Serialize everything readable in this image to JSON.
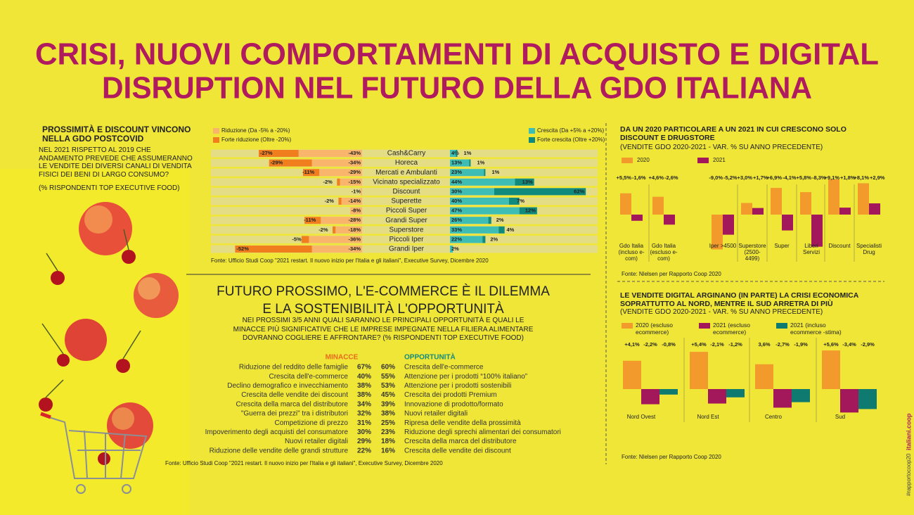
{
  "title": [
    "CRISI, NUOVI COMPORTAMENTI DI ACQUISTO E DIGITAL",
    "DISRUPTION NEL FUTURO DELLA GDO  ITALIANA"
  ],
  "intro": {
    "heading": "PROSSIMITÀ E DISCOUNT VINCONO NELLA GDO POSTCOVID",
    "text": "NEL 2021 RISPETTO AL 2019 CHE ANDAMENTO PREVEDE CHE ASSUMERANNO LE VENDITE DEI DIVERSI CANALI DI VENDITA FISICI DEI BENI DI LARGO CONSUMO?",
    "note": "(% RISPONDENTI TOP EXECUTIVE FOOD)"
  },
  "chart_data": [
    {
      "type": "bar",
      "categories": [
        "Cash&Carry",
        "Horeca",
        "Mercati e Ambulanti",
        "Vicinato specializzato",
        "Discount",
        "Superette",
        "Piccoli Super",
        "Grandi Super",
        "Superstore",
        "Piccoli Iper",
        "Grandi Iper"
      ],
      "series": [
        {
          "name": "Riduzione (Da -5% a -20%)",
          "color": "#f9b56c",
          "values": [
            -43,
            -34,
            -29,
            -15,
            -1,
            -14,
            -8,
            -28,
            -18,
            -36,
            -34
          ],
          "value_labels": [
            "-43%",
            "-34%",
            "-29%",
            "-15%",
            "-1%",
            "-14%",
            "-8%",
            "-28%",
            "-18%",
            "-36%",
            "-34%"
          ]
        },
        {
          "name": "Forte riduzione (Oltre -20%)",
          "color": "#f07d1e",
          "values": [
            -27,
            -29,
            -11,
            -2,
            null,
            -2,
            null,
            -11,
            -2,
            -5,
            -52
          ],
          "value_labels": [
            "-27%",
            "-29%",
            "-11%",
            "-2%",
            null,
            "-2%",
            null,
            "-11%",
            "-2%",
            "-5%",
            "-52%"
          ]
        },
        {
          "name": "Crescita (Da +5% a +20%)",
          "color": "#3dbdb4",
          "values": [
            4,
            13,
            23,
            44,
            30,
            40,
            47,
            26,
            33,
            22,
            2
          ],
          "value_labels": [
            "4%",
            "13%",
            "23%",
            "44%",
            "30%",
            "40%",
            "47%",
            "26%",
            "33%",
            "22%",
            "2%"
          ]
        },
        {
          "name": "Forte crescita (Oltre +20%)",
          "color": "#108a7c",
          "values": [
            1,
            1,
            1,
            13,
            62,
            7,
            12,
            2,
            4,
            2,
            null
          ],
          "value_labels": [
            "1%",
            "1%",
            "1%",
            "13%",
            "62%",
            "7%",
            "12%",
            "2%",
            "4%",
            "2%",
            null
          ]
        }
      ],
      "source": "Fonte: Ufficio Studi Coop \"2021 restart. Il nuovo inizio per l'Italia e gli italiani\", Executive Survey, Dicembre 2020"
    },
    {
      "type": "bar",
      "title": "DA UN 2020 PARTICOLARE A UN 2021 IN CUI CRESCONO SOLO DISCOUNT E DRUGSTORE",
      "subtitle": "(VENDITE GDO 2020-2021 - VAR. % SU ANNO PRECEDENTE)",
      "categories": [
        "Gdo Italia (incluso e-com)",
        "Gdo Italia (escluso e-com)",
        "Iper >4500",
        "Superstore (2500-4499)",
        "Super",
        "Liberi Servizi",
        "Discount",
        "Specialisti Drug"
      ],
      "series": [
        {
          "name": "2020",
          "color": "#f39a2c",
          "values": [
            5.5,
            4.6,
            -9.0,
            3.0,
            6.9,
            5.8,
            9.1,
            8.1
          ],
          "value_labels": [
            "+5,5%",
            "+4,6%",
            "-9,0%",
            "+3,0%",
            "+6,9%",
            "+5,8%",
            "+9,1%",
            "+8,1%"
          ]
        },
        {
          "name": "2021",
          "color": "#a3185b",
          "values": [
            -1.6,
            -2.6,
            -5.2,
            1.7,
            -4.1,
            -8.3,
            1.8,
            2.9
          ],
          "value_labels": [
            "-1,6%",
            "-2,6%",
            "-5,2%",
            "+1,7%",
            "-4,1%",
            "-8,3%",
            "+1,8%",
            "+2,9%"
          ]
        }
      ],
      "source": "Fonte: Nlelsen per Rapporto Coop 2020"
    },
    {
      "type": "bar",
      "title": "LE VENDITE DIGITAL ARGINANO (IN PARTE) LA CRISI ECONOMICA SOPRATTUTTO AL NORD, MENTRE IL SUD ARRETRA DI PIÙ",
      "subtitle": "(VENDITE GDO 2020-2021 - VAR. % SU ANNO PRECEDENTE)",
      "categories": [
        "Nord Ovest",
        "Nord Est",
        "Centro",
        "Sud"
      ],
      "series": [
        {
          "name": "2020 (escluso ecommerce)",
          "color": "#f39a2c",
          "values": [
            4.1,
            5.4,
            3.6,
            5.6
          ],
          "value_labels": [
            "+4,1%",
            "+5,4%",
            "3,6%",
            "+5,6%"
          ]
        },
        {
          "name": "2021 (escluso ecommerce)",
          "color": "#a3185b",
          "values": [
            -2.2,
            -2.1,
            -2.7,
            -3.4
          ],
          "value_labels": [
            "-2,2%",
            "-2,1%",
            "-2,7%",
            "-3,4%"
          ]
        },
        {
          "name": "2021 (incluso ecommerce -stima)",
          "color": "#0f7b70",
          "values": [
            -0.8,
            -1.2,
            -1.9,
            -2.9
          ],
          "value_labels": [
            "-0,8%",
            "-1,2%",
            "-1,9%",
            "-2,9%"
          ]
        }
      ],
      "source": "Fonte: Nlelsen per Rapporto Coop 2020"
    }
  ],
  "future": {
    "title": [
      "FUTURO PROSSIMO, L'E-COMMERCE È IL DILEMMA",
      "E LA SOSTENIBILITÀ  L'OPPORTUNITÀ"
    ],
    "question": "NEI PROSSIMI 3/5 ANNI QUALI SARANNO LE PRINCIPALI OPPORTUNITÀ E QUALI LE MINACCE PIÙ SIGNIFICATIVE CHE LE IMPRESE IMPEGNATE NELLA FILIERA ALIMENTARE DOVRANNO COGLIERE E AFFRONTARE? (% RISPONDENTI TOP EXECUTIVE FOOD)",
    "threats": {
      "header": "MINACCE",
      "rows": [
        [
          "Riduzione del reddito delle famiglie",
          "67%"
        ],
        [
          "Crescita dell'e-commerce",
          "40%"
        ],
        [
          "Declino demografico e invecchiamento",
          "38%"
        ],
        [
          "Crescita delle vendite dei discount",
          "38%"
        ],
        [
          "Crescita della marca del distributore",
          "34%"
        ],
        [
          "\"Guerra dei prezzi\" tra i distributori",
          "32%"
        ],
        [
          "Competizione di prezzo",
          "31%"
        ],
        [
          "Impoverimento degli acquisti del consumatore",
          "30%"
        ],
        [
          "Nuovi retailer digitali",
          "29%"
        ],
        [
          "Riduzione delle vendite delle grandi strutture",
          "22%"
        ]
      ]
    },
    "opportunities": {
      "header": "OPPORTUNITÀ",
      "rows": [
        [
          "60%",
          "Crescita dell'e-commerce"
        ],
        [
          "55%",
          "Attenzione per i prodotti “100% italiano”"
        ],
        [
          "53%",
          "Attenzione per i prodotti sostenibili"
        ],
        [
          "45%",
          "Crescita dei prodotti Premium"
        ],
        [
          "39%",
          "Innovazione di prodotto/formato"
        ],
        [
          "38%",
          "Nuovi retailer digitali"
        ],
        [
          "25%",
          "Ripresa delle vendite della prossimità"
        ],
        [
          "23%",
          "Riduzione degli sprechi alimentari dei consumatori"
        ],
        [
          "18%",
          "Crescita della marca del distributore"
        ],
        [
          "16%",
          "Crescita delle vendite dei discount"
        ]
      ]
    },
    "source": "Fonte: Ufficio Studi Coop \"2021 restart. Il nuovo inizio per l'Italia e gli italiani\", Executive Survey, Dicembre 2020"
  },
  "side": [
    "#rapportocoop20",
    "italiani.coop"
  ]
}
